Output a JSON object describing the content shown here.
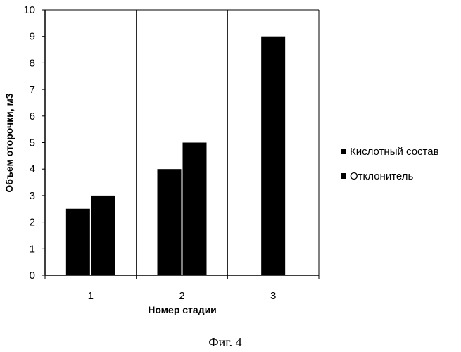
{
  "chart_data": {
    "type": "bar",
    "categories": [
      "1",
      "2",
      "3"
    ],
    "series": [
      {
        "name": "Кислотный состав",
        "values": [
          2.5,
          4,
          9
        ],
        "color": "#000000"
      },
      {
        "name": "Отклонитель",
        "values": [
          3,
          5,
          null
        ],
        "color": "#000000"
      }
    ],
    "ylim": [
      0,
      10
    ],
    "y_ticks": [
      0,
      1,
      2,
      3,
      4,
      5,
      6,
      7,
      8,
      9,
      10
    ],
    "xlabel": "Номер стадии",
    "ylabel": "Объем оторочки, м3",
    "grid": "vertical",
    "legend_position": "right"
  },
  "caption": "Фиг. 4"
}
